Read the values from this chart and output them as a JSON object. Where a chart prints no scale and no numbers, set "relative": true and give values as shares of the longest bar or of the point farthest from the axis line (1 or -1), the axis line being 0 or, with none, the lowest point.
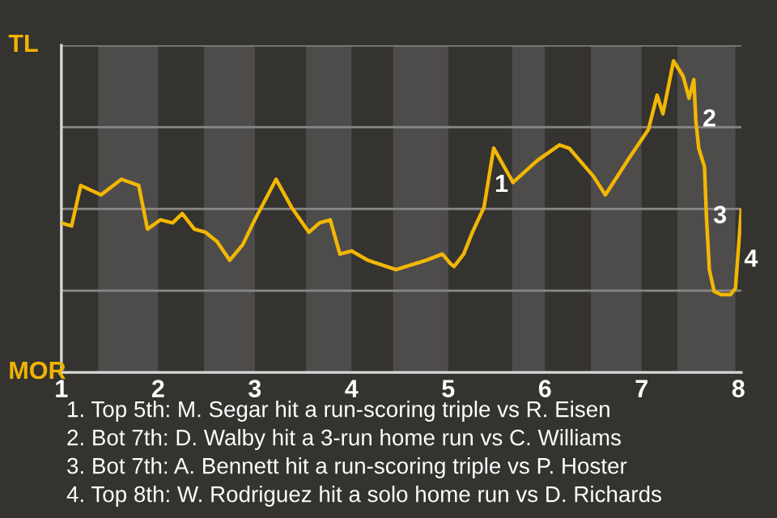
{
  "chart_data": {
    "type": "line",
    "relative": true,
    "x": [
      1,
      1.105,
      1.2,
      1.41,
      1.62,
      1.8,
      1.89,
      2.025,
      2.15,
      2.25,
      2.375,
      2.49,
      2.61,
      2.74,
      2.875,
      3.0,
      3.22,
      3.38,
      3.56,
      3.67,
      3.78,
      3.88,
      4.0,
      4.17,
      4.46,
      4.77,
      4.94,
      5.02,
      5.06,
      5.16,
      5.25,
      5.37,
      5.47,
      5.67,
      5.92,
      6.15,
      6.25,
      6.5,
      6.625,
      6.875,
      7.07,
      7.16,
      7.22,
      7.33,
      7.43,
      7.49,
      7.54,
      7.56,
      7.59,
      7.65,
      7.67,
      7.7,
      7.75,
      7.82,
      7.92,
      7.97,
      8.03
    ],
    "series": [
      {
        "color": "#f2b705",
        "values": [
          0.48,
          0.47,
          0.6,
          0.57,
          0.62,
          0.6,
          0.46,
          0.49,
          0.48,
          0.51,
          0.46,
          0.45,
          0.42,
          0.36,
          0.41,
          0.49,
          0.62,
          0.53,
          0.45,
          0.48,
          0.49,
          0.38,
          0.39,
          0.36,
          0.33,
          0.36,
          0.38,
          0.35,
          0.34,
          0.38,
          0.45,
          0.53,
          0.72,
          0.61,
          0.68,
          0.73,
          0.72,
          0.63,
          0.57,
          0.69,
          0.78,
          0.89,
          0.83,
          1,
          0.95,
          0.88,
          0.94,
          0.81,
          0.72,
          0.66,
          0.5,
          0.33,
          0.26,
          0.25,
          0.25,
          0.27,
          0.52
        ]
      }
    ],
    "xlim": [
      1,
      8.03
    ],
    "xticks": [
      1,
      2,
      3,
      4,
      5,
      6,
      7,
      8
    ],
    "grid": "y",
    "marker": "none",
    "line_style": "solid",
    "bands": [
      {
        "axis": "x",
        "from": 1.38,
        "to": 2,
        "color": "#4e4c4a"
      },
      {
        "axis": "x",
        "from": 2.475,
        "to": 3,
        "color": "#4e4c4a"
      },
      {
        "axis": "x",
        "from": 3.53,
        "to": 4,
        "color": "#4e4c4a"
      },
      {
        "axis": "x",
        "from": 4.43,
        "to": 5,
        "color": "#4e4c4a"
      },
      {
        "axis": "x",
        "from": 5.66,
        "to": 6,
        "color": "#4e4c4a"
      },
      {
        "axis": "x",
        "from": 6.475,
        "to": 7,
        "color": "#4e4c4a"
      },
      {
        "axis": "x",
        "from": 7.37,
        "to": 7.97,
        "color": "#4e4c4a"
      }
    ],
    "annotations": [
      "TL",
      "MOR",
      {
        "text": "1",
        "x": 5.41,
        "y": 0.6
      },
      {
        "text": "2",
        "x": 7.56,
        "y": 0.81
      },
      {
        "text": "3",
        "x": 7.67,
        "y": 0.5
      },
      {
        "text": "4",
        "x": 7.99,
        "y": 0.36
      },
      "1. Top 5th: M. Segar hit a run-scoring triple vs R. Eisen",
      "2. Bot 7th: D. Walby hit a 3-run home run vs C. Williams",
      "3. Bot 7th: A. Bennett hit a run-scoring triple vs P. Hoster",
      "4. Top 8th: W. Rodriguez hit a solo home run vs D. Richards"
    ]
  }
}
